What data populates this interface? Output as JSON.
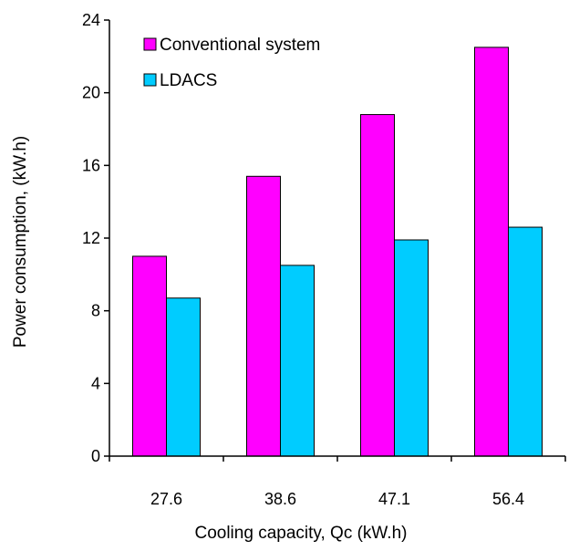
{
  "chart_data": {
    "type": "bar",
    "categories": [
      "27.6",
      "38.6",
      "47.1",
      "56.4"
    ],
    "series": [
      {
        "name": "Conventional system",
        "values": [
          11.0,
          15.4,
          18.8,
          22.5
        ],
        "color": "#ff00ff"
      },
      {
        "name": "LDACS",
        "values": [
          8.7,
          10.5,
          11.9,
          12.6
        ],
        "color": "#00ccff"
      }
    ],
    "title": "",
    "xlabel": "Cooling capacity, Qᴄ (kW.h)",
    "ylabel": "Power consumption,  (kW.h)",
    "ylim": [
      0,
      24
    ],
    "yticks": [
      "0",
      "4",
      "8",
      "12",
      "16",
      "20",
      "24"
    ],
    "grid": false,
    "legend_position": "top-left"
  }
}
